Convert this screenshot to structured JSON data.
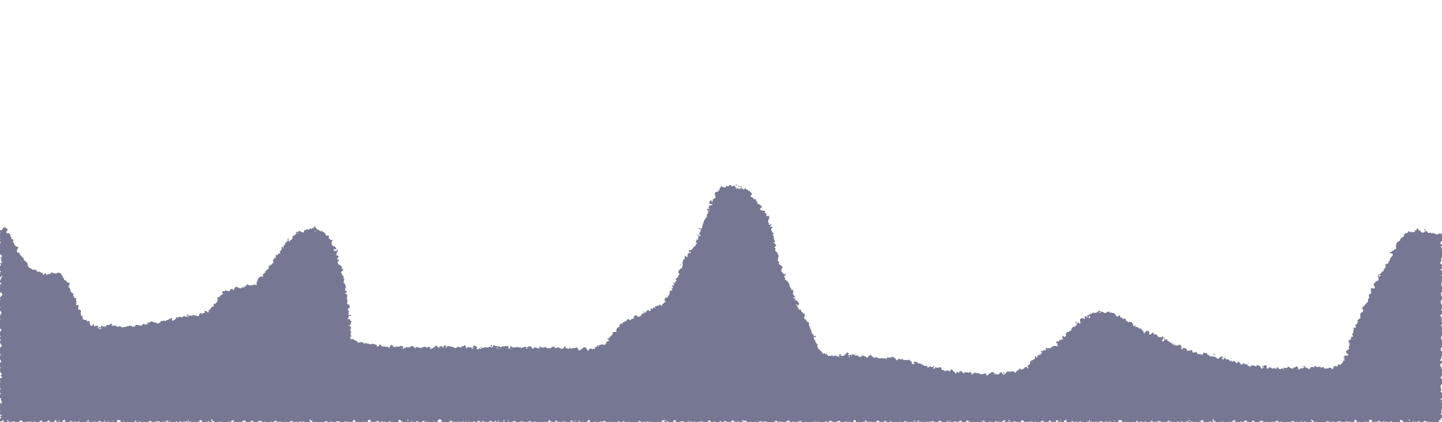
{
  "scene": {
    "background_color": "#ffffff",
    "fill_color": "#767893",
    "shape": "mountain-silhouette",
    "edge_style": "rough-noisy"
  }
}
